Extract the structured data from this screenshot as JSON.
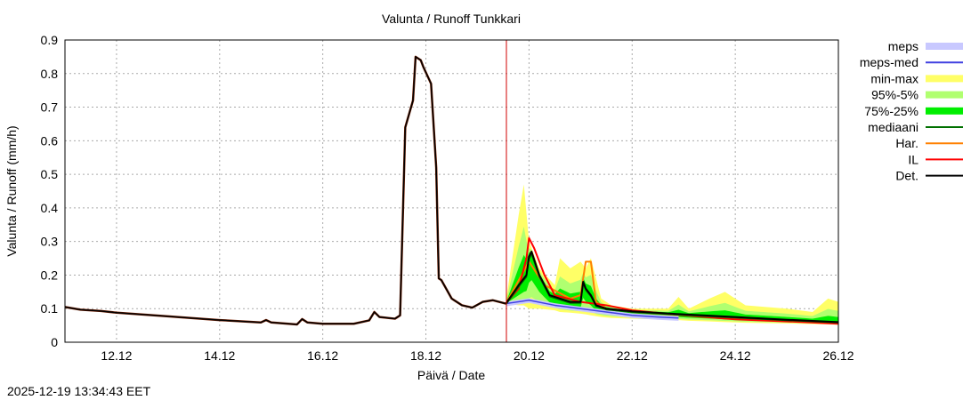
{
  "chart_data": {
    "type": "line",
    "title": "Valunta / Runoff  Tunkkari",
    "xlabel": "Päivä / Date",
    "ylabel": "Valunta / Runoff (mm/h)",
    "ylim": [
      0,
      0.9
    ],
    "xlim_days": [
      11.0,
      26.0
    ],
    "grid": true,
    "legend_position": "right",
    "yticks": [
      "0",
      "0.1",
      "0.2",
      "0.3",
      "0.4",
      "0.5",
      "0.6",
      "0.7",
      "0.8",
      "0.9"
    ],
    "xticks": [
      "12.12",
      "14.12",
      "16.12",
      "18.12",
      "20.12",
      "22.12",
      "24.12",
      "26.12"
    ],
    "forecast_start_day": 19.55,
    "legend": [
      {
        "label": "meps",
        "color": "#c8c8ff",
        "kind": "band"
      },
      {
        "label": "meps-med",
        "color": "#4040e0",
        "kind": "line"
      },
      {
        "label": "min-max",
        "color": "#ffff66",
        "kind": "band"
      },
      {
        "label": "95%-5%",
        "color": "#b0ff70",
        "kind": "band"
      },
      {
        "label": "75%-25%",
        "color": "#00ee00",
        "kind": "band"
      },
      {
        "label": "mediaani",
        "color": "#007000",
        "kind": "line"
      },
      {
        "label": "Har.",
        "color": "#ff8000",
        "kind": "line"
      },
      {
        "label": "IL",
        "color": "#ff0000",
        "kind": "line"
      },
      {
        "label": "Det.",
        "color": "#000000",
        "kind": "line"
      }
    ],
    "series": [
      {
        "name": "Det. (observed/history)",
        "x": [
          11.0,
          11.3,
          11.7,
          12.0,
          13.0,
          14.0,
          14.8,
          14.9,
          15.0,
          15.5,
          15.6,
          15.7,
          16.0,
          16.6,
          16.9,
          17.0,
          17.1,
          17.4,
          17.5,
          17.6,
          17.75,
          17.8,
          17.9,
          17.95,
          18.1,
          18.2,
          18.25,
          18.3,
          18.5,
          18.7,
          18.9,
          19.1,
          19.3,
          19.55
        ],
        "y": [
          0.105,
          0.097,
          0.093,
          0.088,
          0.077,
          0.066,
          0.059,
          0.066,
          0.059,
          0.053,
          0.069,
          0.059,
          0.055,
          0.055,
          0.065,
          0.09,
          0.075,
          0.07,
          0.08,
          0.64,
          0.72,
          0.85,
          0.84,
          0.82,
          0.77,
          0.52,
          0.19,
          0.185,
          0.13,
          0.11,
          0.103,
          0.12,
          0.125,
          0.115
        ]
      },
      {
        "name": "Det. (forecast)",
        "x": [
          19.55,
          19.8,
          19.95,
          20.0,
          20.05,
          20.2,
          20.4,
          20.8,
          21.0,
          21.05,
          21.1,
          21.2,
          21.3,
          21.5,
          22.0,
          23.0,
          24.0,
          25.0,
          26.0
        ],
        "y": [
          0.115,
          0.17,
          0.2,
          0.255,
          0.27,
          0.2,
          0.14,
          0.12,
          0.12,
          0.18,
          0.16,
          0.14,
          0.11,
          0.1,
          0.092,
          0.083,
          0.075,
          0.067,
          0.06
        ]
      },
      {
        "name": "IL",
        "x": [
          19.55,
          19.8,
          19.95,
          20.0,
          20.1,
          20.3,
          20.5,
          21.0,
          21.5,
          22.0,
          23.0,
          24.0,
          25.0,
          26.0
        ],
        "y": [
          0.115,
          0.16,
          0.25,
          0.31,
          0.28,
          0.2,
          0.14,
          0.12,
          0.11,
          0.095,
          0.08,
          0.068,
          0.062,
          0.055
        ]
      },
      {
        "name": "Har.",
        "x": [
          19.55,
          20.0,
          20.3,
          20.8,
          21.0,
          21.1,
          21.2,
          21.3,
          21.5,
          22.0,
          23.0,
          24.0,
          25.0,
          26.0
        ],
        "y": [
          0.115,
          0.24,
          0.17,
          0.13,
          0.14,
          0.24,
          0.24,
          0.12,
          0.1,
          0.09,
          0.08,
          0.07,
          0.065,
          0.058
        ]
      },
      {
        "name": "meps-med",
        "x": [
          19.55,
          20.0,
          20.5,
          21.0,
          21.5,
          22.0,
          22.5,
          22.9
        ],
        "y": [
          0.115,
          0.125,
          0.11,
          0.1,
          0.09,
          0.08,
          0.075,
          0.072
        ]
      },
      {
        "name": "min-max",
        "x_upper": [
          19.55,
          19.8,
          19.9,
          20.0,
          20.2,
          20.5,
          20.6,
          20.8,
          21.0,
          21.1,
          21.2,
          21.4,
          21.6,
          22.0,
          22.7,
          22.9,
          23.1,
          23.5,
          23.8,
          24.2,
          25.0,
          25.5,
          25.8,
          26.0
        ],
        "y_upper": [
          0.12,
          0.38,
          0.47,
          0.3,
          0.22,
          0.17,
          0.25,
          0.22,
          0.24,
          0.22,
          0.25,
          0.13,
          0.11,
          0.1,
          0.1,
          0.135,
          0.1,
          0.13,
          0.15,
          0.11,
          0.1,
          0.09,
          0.13,
          0.12
        ],
        "y_lower": [
          0.115,
          0.11,
          0.11,
          0.1,
          0.1,
          0.095,
          0.09,
          0.088,
          0.085,
          0.083,
          0.08,
          0.075,
          0.072,
          0.07,
          0.067,
          0.066,
          0.064,
          0.062,
          0.06,
          0.058,
          0.056,
          0.054,
          0.053,
          0.052
        ]
      },
      {
        "name": "95%-5%",
        "y_upper_peak": 0.4
      },
      {
        "name": "75%-25%",
        "y_upper_peak": 0.26
      }
    ]
  },
  "footer": {
    "timestamp": "2025-12-19 13:34:43 EET"
  }
}
